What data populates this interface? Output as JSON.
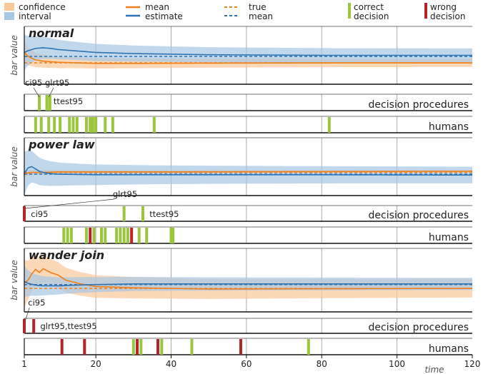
{
  "legend": {
    "confidence_interval": [
      "confidence",
      "interval"
    ],
    "mean_estimate": [
      "mean",
      "estimate"
    ],
    "true_mean": [
      "true",
      "mean"
    ],
    "correct_decision": [
      "correct",
      "decision"
    ],
    "wrong_decision": [
      "wrong",
      "decision"
    ]
  },
  "colors": {
    "orange": "#f07f19",
    "orange_band": "#f8c79a",
    "blue": "#2e74b4",
    "blue_band": "#a6c8e4",
    "correct": "#9bc53d",
    "wrong": "#b3242b",
    "grid": "#aaaaaa"
  },
  "chart_data": {
    "type": "line",
    "xlabel": "time",
    "xlim": [
      1,
      120
    ],
    "xticks": [
      1,
      20,
      40,
      60,
      80,
      100,
      120
    ],
    "ylabel": "bar value",
    "strip_labels": {
      "decision": "decision procedures",
      "humans": "humans"
    },
    "panels": [
      {
        "title": "normal",
        "true_means": {
          "orange": 0.37,
          "blue": 0.48
        },
        "series": [
          {
            "color": "orange",
            "band": 0.06,
            "points": [
              [
                1,
                0.55
              ],
              [
                2,
                0.48
              ],
              [
                4,
                0.42
              ],
              [
                6,
                0.4
              ],
              [
                10,
                0.38
              ],
              [
                20,
                0.36
              ],
              [
                30,
                0.36
              ],
              [
                50,
                0.365
              ],
              [
                80,
                0.37
              ],
              [
                120,
                0.37
              ]
            ]
          },
          {
            "color": "blue",
            "band": 0.1,
            "points": [
              [
                1,
                0.55
              ],
              [
                2,
                0.58
              ],
              [
                4,
                0.62
              ],
              [
                6,
                0.63
              ],
              [
                8,
                0.62
              ],
              [
                10,
                0.6
              ],
              [
                14,
                0.58
              ],
              [
                20,
                0.55
              ],
              [
                30,
                0.53
              ],
              [
                50,
                0.51
              ],
              [
                80,
                0.5
              ],
              [
                120,
                0.5
              ]
            ]
          }
        ],
        "decision_events": [
          {
            "x": 5,
            "type": "correct"
          },
          {
            "x": 7,
            "type": "correct"
          },
          {
            "x": 7.8,
            "type": "correct"
          }
        ],
        "decision_annotations": [
          {
            "text": "ci95",
            "x": 4.8,
            "pos": "above"
          },
          {
            "text": "glrt95",
            "x": 7.2,
            "pos": "above"
          },
          {
            "text": "ttest95",
            "x": 8.2,
            "pos": "below"
          }
        ],
        "human_events": [
          {
            "x": 4,
            "type": "correct"
          },
          {
            "x": 5.5,
            "type": "correct"
          },
          {
            "x": 7.5,
            "type": "correct"
          },
          {
            "x": 9,
            "type": "correct"
          },
          {
            "x": 10.5,
            "type": "correct"
          },
          {
            "x": 13,
            "type": "correct"
          },
          {
            "x": 14,
            "type": "correct"
          },
          {
            "x": 15,
            "type": "correct"
          },
          {
            "x": 17.5,
            "type": "correct"
          },
          {
            "x": 18.5,
            "type": "correct"
          },
          {
            "x": 19.2,
            "type": "correct"
          },
          {
            "x": 20,
            "type": "correct"
          },
          {
            "x": 22.5,
            "type": "correct"
          },
          {
            "x": 24.5,
            "type": "correct"
          },
          {
            "x": 35.5,
            "type": "correct"
          },
          {
            "x": 82,
            "type": "correct"
          }
        ]
      },
      {
        "title": "power law",
        "true_means": {
          "orange": 0.4,
          "blue": 0.37
        },
        "series": [
          {
            "color": "orange",
            "band": 0.02,
            "points": [
              [
                1,
                0.38
              ],
              [
                3,
                0.4
              ],
              [
                6,
                0.4
              ],
              [
                10,
                0.41
              ],
              [
                20,
                0.41
              ],
              [
                40,
                0.41
              ],
              [
                80,
                0.415
              ],
              [
                120,
                0.42
              ]
            ]
          },
          {
            "color": "blue",
            "band": 0.12,
            "points": [
              [
                1,
                0.38
              ],
              [
                2,
                0.48
              ],
              [
                3,
                0.5
              ],
              [
                4,
                0.46
              ],
              [
                5,
                0.42
              ],
              [
                6,
                0.4
              ],
              [
                8,
                0.38
              ],
              [
                10,
                0.37
              ],
              [
                20,
                0.36
              ],
              [
                40,
                0.36
              ],
              [
                80,
                0.36
              ],
              [
                120,
                0.355
              ]
            ]
          }
        ],
        "decision_events": [
          {
            "x": 1,
            "type": "wrong"
          },
          {
            "x": 27.5,
            "type": "correct"
          },
          {
            "x": 32.5,
            "type": "correct"
          }
        ],
        "decision_annotations": [
          {
            "text": "ci95",
            "x": 2,
            "pos": "inline"
          },
          {
            "text": "glrt95",
            "x": 24.5,
            "pos": "above"
          },
          {
            "text": "ttest95",
            "x": 33.5,
            "pos": "inline"
          }
        ],
        "human_events": [
          {
            "x": 11.5,
            "type": "correct"
          },
          {
            "x": 12.5,
            "type": "correct"
          },
          {
            "x": 13.5,
            "type": "correct"
          },
          {
            "x": 17.5,
            "type": "correct"
          },
          {
            "x": 18.5,
            "type": "wrong"
          },
          {
            "x": 19.5,
            "type": "correct"
          },
          {
            "x": 21.5,
            "type": "correct"
          },
          {
            "x": 22.5,
            "type": "correct"
          },
          {
            "x": 25.5,
            "type": "correct"
          },
          {
            "x": 26.5,
            "type": "correct"
          },
          {
            "x": 27.5,
            "type": "correct"
          },
          {
            "x": 28.5,
            "type": "correct"
          },
          {
            "x": 29.5,
            "type": "wrong"
          },
          {
            "x": 31.5,
            "type": "correct"
          },
          {
            "x": 33.5,
            "type": "correct"
          },
          {
            "x": 40,
            "type": "correct"
          },
          {
            "x": 40.5,
            "type": "correct"
          }
        ]
      },
      {
        "title": "wander join",
        "true_means": {
          "orange": 0.37,
          "blue": 0.43
        },
        "series": [
          {
            "color": "orange",
            "band": 0.12,
            "points": [
              [
                1,
                0.45
              ],
              [
                2,
                0.5
              ],
              [
                3,
                0.6
              ],
              [
                4,
                0.67
              ],
              [
                5,
                0.62
              ],
              [
                6,
                0.68
              ],
              [
                7,
                0.65
              ],
              [
                8,
                0.62
              ],
              [
                10,
                0.58
              ],
              [
                12,
                0.5
              ],
              [
                16,
                0.44
              ],
              [
                20,
                0.4
              ],
              [
                30,
                0.38
              ],
              [
                50,
                0.36
              ],
              [
                80,
                0.365
              ],
              [
                120,
                0.37
              ]
            ]
          },
          {
            "color": "blue",
            "band": 0.08,
            "points": [
              [
                1,
                0.48
              ],
              [
                2,
                0.45
              ],
              [
                4,
                0.42
              ],
              [
                6,
                0.41
              ],
              [
                10,
                0.41
              ],
              [
                14,
                0.42
              ],
              [
                20,
                0.43
              ],
              [
                30,
                0.44
              ],
              [
                50,
                0.44
              ],
              [
                80,
                0.44
              ],
              [
                120,
                0.44
              ]
            ]
          }
        ],
        "decision_events": [
          {
            "x": 1,
            "type": "wrong"
          },
          {
            "x": 3.5,
            "type": "wrong"
          }
        ],
        "decision_annotations": [
          {
            "text": "ci95",
            "x": 5,
            "pos": "above"
          },
          {
            "text": "glrt95,ttest95",
            "x": 4.5,
            "pos": "inline"
          }
        ],
        "human_events": [
          {
            "x": 11,
            "type": "wrong"
          },
          {
            "x": 17,
            "type": "wrong"
          },
          {
            "x": 30,
            "type": "correct"
          },
          {
            "x": 31,
            "type": "wrong"
          },
          {
            "x": 32,
            "type": "correct"
          },
          {
            "x": 36.5,
            "type": "wrong"
          },
          {
            "x": 37.5,
            "type": "correct"
          },
          {
            "x": 45.5,
            "type": "correct"
          },
          {
            "x": 58.5,
            "type": "wrong"
          },
          {
            "x": 76.5,
            "type": "correct"
          }
        ]
      }
    ]
  }
}
